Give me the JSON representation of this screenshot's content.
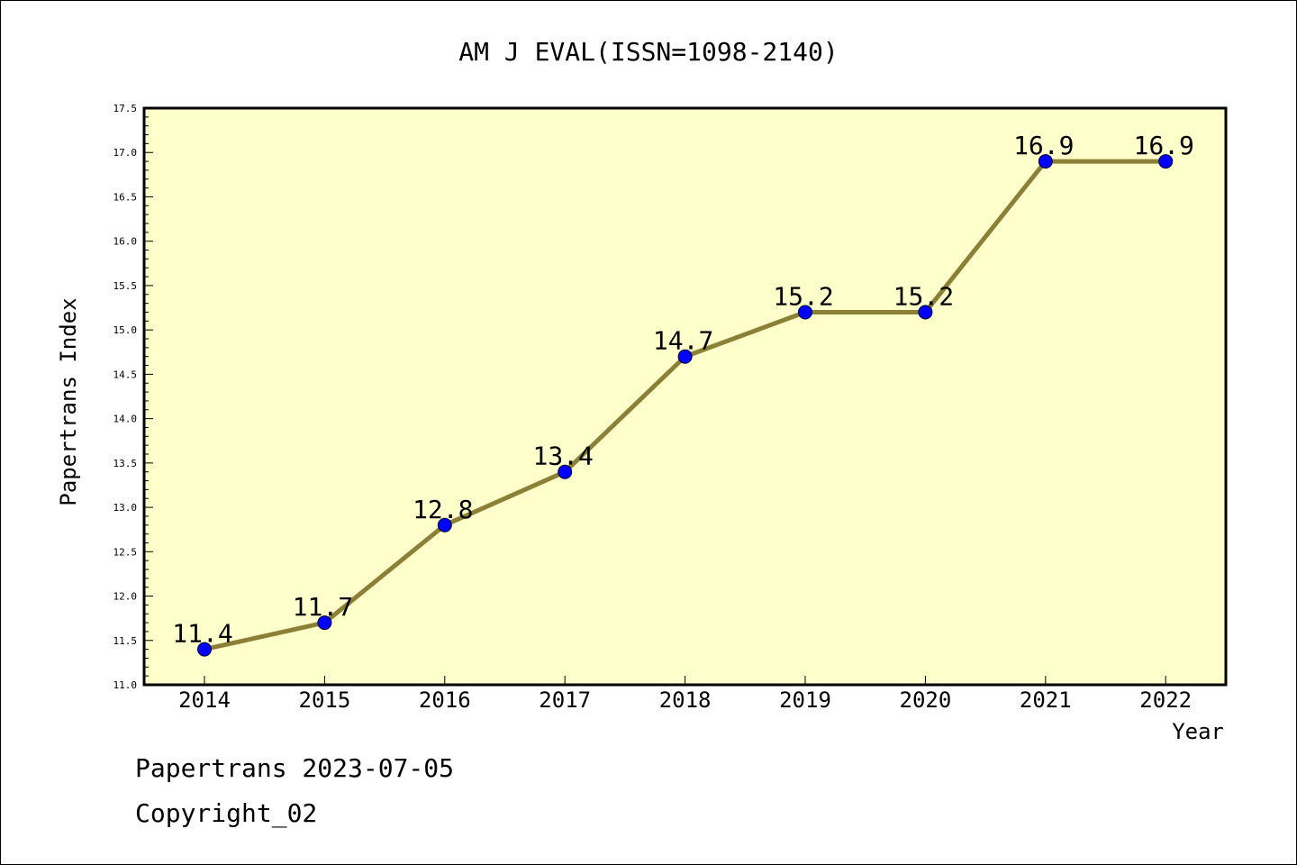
{
  "chart_data": {
    "type": "line",
    "title": "AM J EVAL(ISSN=1098-2140)",
    "xlabel": "Year",
    "ylabel": "Papertrans Index",
    "categories": [
      "2014",
      "2015",
      "2016",
      "2017",
      "2018",
      "2019",
      "2020",
      "2021",
      "2022"
    ],
    "values": [
      11.4,
      11.7,
      12.8,
      13.4,
      14.7,
      15.2,
      15.2,
      16.9,
      16.9
    ],
    "data_labels": [
      "11.4",
      "11.7",
      "12.8",
      "13.4",
      "14.7",
      "15.2",
      "15.2",
      "16.9",
      "16.9"
    ],
    "ylim": [
      11.0,
      17.5
    ],
    "y_ticks": [
      "11.0",
      "11.5",
      "12.0",
      "12.5",
      "13.0",
      "13.5",
      "14.0",
      "14.5",
      "15.0",
      "15.5",
      "16.0",
      "16.5",
      "17.0",
      "17.5"
    ],
    "grid": false,
    "colors": {
      "plot_background": "#ffffcc",
      "line": "#8b8036",
      "marker": "#0000ff"
    }
  },
  "footer": {
    "line1": "Papertrans 2023-07-05",
    "line2": "Copyright_02"
  }
}
